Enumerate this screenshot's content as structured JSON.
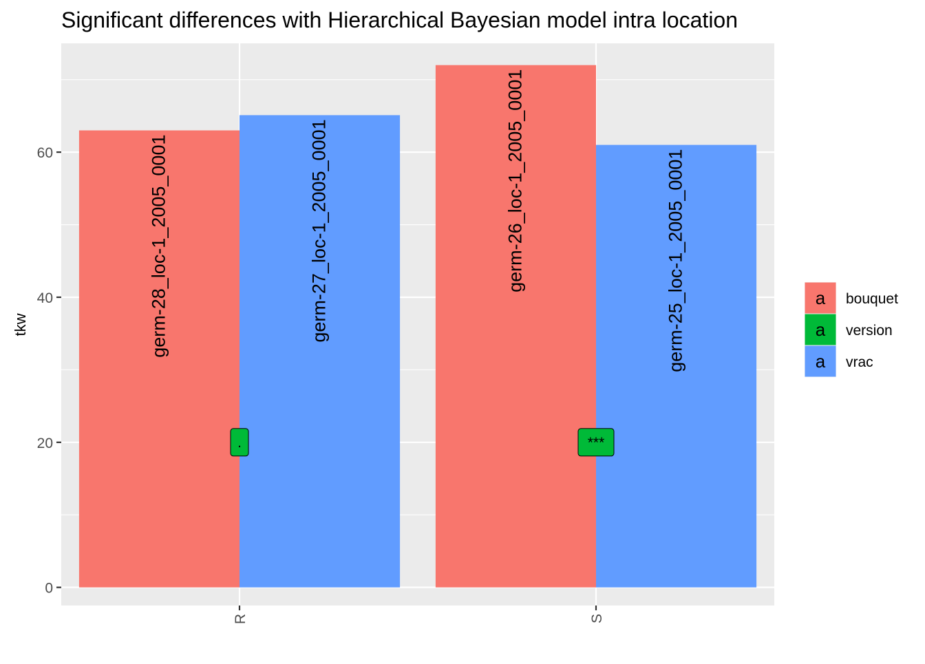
{
  "chart_data": {
    "type": "bar",
    "title": "Significant differences with Hierarchical Bayesian model intra location",
    "xlabel": "",
    "ylabel": "tkw",
    "categories": [
      "R",
      "S"
    ],
    "ylim": [
      -2.5,
      75
    ],
    "yticks": [
      0,
      20,
      40,
      60
    ],
    "grid": true,
    "legend_position": "right",
    "legend_key_glyph": "a",
    "series": [
      {
        "name": "bouquet",
        "color": "#F8766D",
        "values": [
          63,
          72
        ],
        "labels": [
          "germ-28_loc-1_2005_0001",
          "germ-26_loc-1_2005_0001"
        ]
      },
      {
        "name": "vrac",
        "color": "#619CFF",
        "values": [
          65.1,
          61
        ],
        "labels": [
          "germ-27_loc-1_2005_0001",
          "germ-25_loc-1_2005_0001"
        ]
      }
    ],
    "legend": [
      {
        "name": "bouquet",
        "color": "#F8766D"
      },
      {
        "name": "version",
        "color": "#00BA38"
      },
      {
        "name": "vrac",
        "color": "#619CFF"
      }
    ],
    "significance": [
      {
        "category": "R",
        "label": ".",
        "y": 20,
        "color": "#00BA38"
      },
      {
        "category": "S",
        "label": "***",
        "y": 20,
        "color": "#00BA38"
      }
    ]
  }
}
